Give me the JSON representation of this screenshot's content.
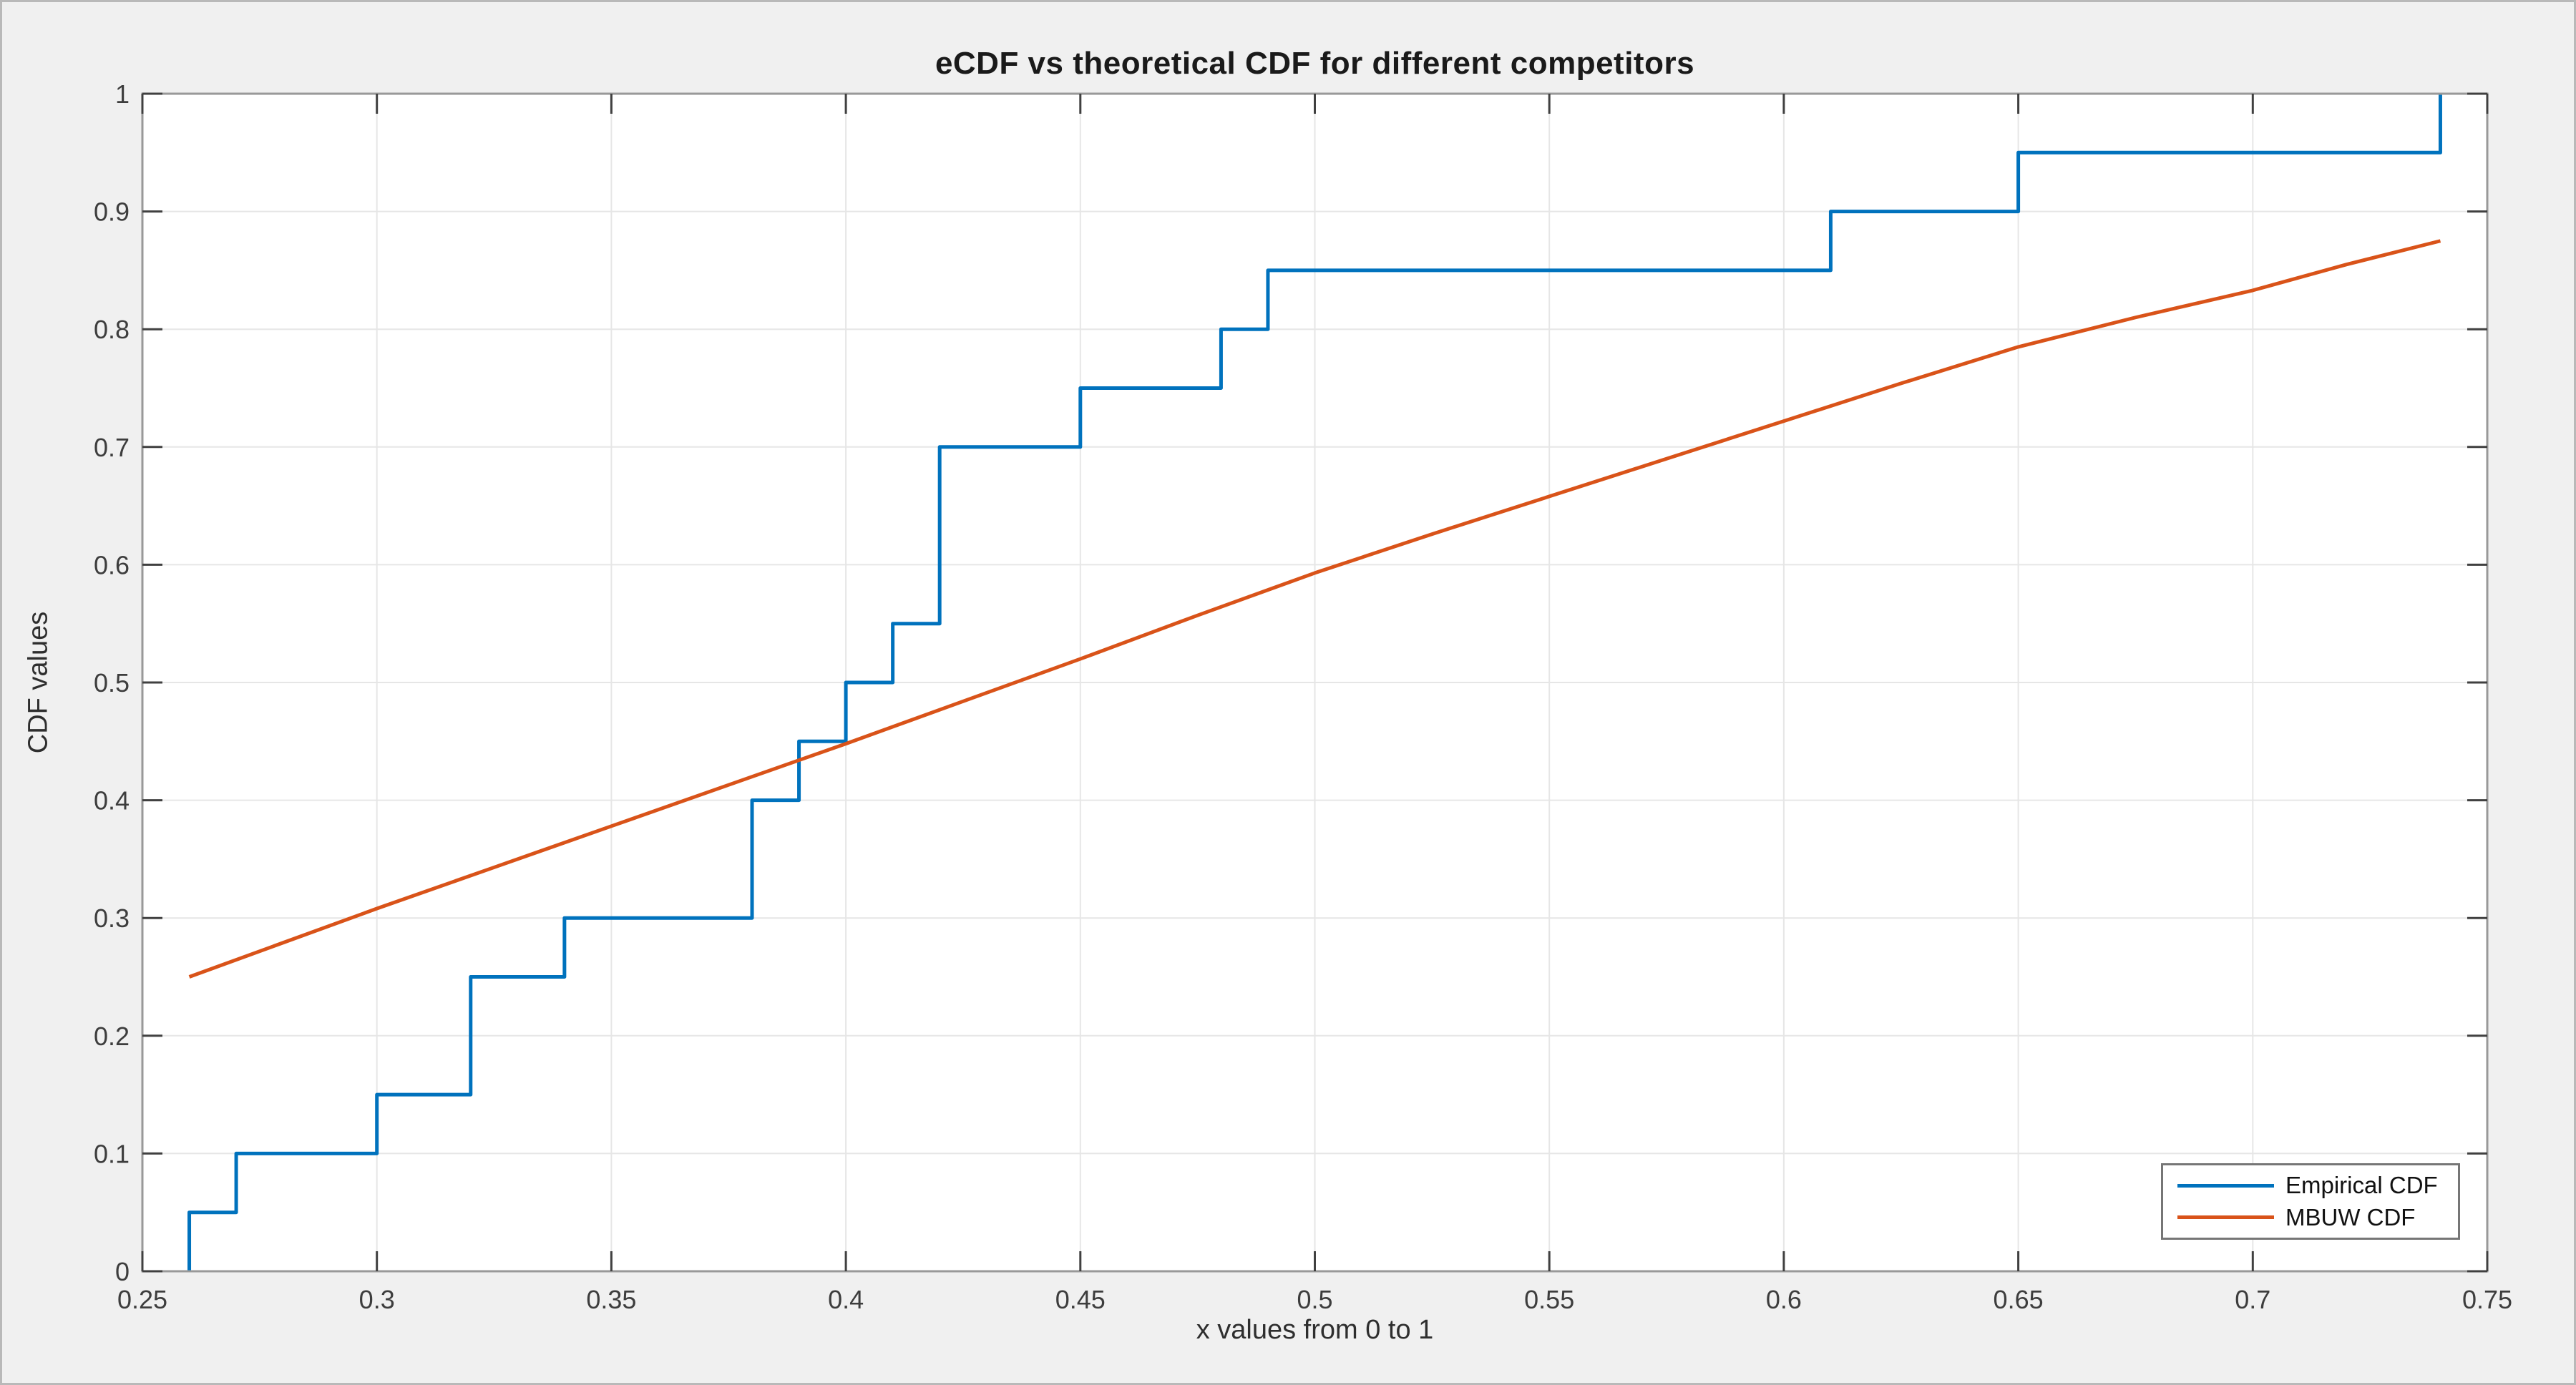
{
  "chart_data": {
    "type": "line",
    "title": "eCDF vs theoretical CDF for different competitors",
    "xlabel": "x values from 0 to 1",
    "ylabel": "CDF values",
    "xlim": [
      0.25,
      0.75
    ],
    "ylim": [
      0,
      1
    ],
    "xtick_labels": [
      "0.25",
      "0.3",
      "0.35",
      "0.4",
      "0.45",
      "0.5",
      "0.55",
      "0.6",
      "0.65",
      "0.7",
      "0.75"
    ],
    "ytick_labels": [
      "0",
      "0.1",
      "0.2",
      "0.3",
      "0.4",
      "0.5",
      "0.6",
      "0.7",
      "0.8",
      "0.9",
      "1"
    ],
    "grid": true,
    "legend_position": "bottom-right",
    "series": [
      {
        "name": "Empirical CDF",
        "style": "step",
        "color": "#0072BD",
        "start_y": 0,
        "jump_points": [
          [
            0.26,
            0.05
          ],
          [
            0.27,
            0.1
          ],
          [
            0.3,
            0.15
          ],
          [
            0.32,
            0.25
          ],
          [
            0.34,
            0.3
          ],
          [
            0.38,
            0.4
          ],
          [
            0.39,
            0.45
          ],
          [
            0.4,
            0.5
          ],
          [
            0.41,
            0.55
          ],
          [
            0.42,
            0.7
          ],
          [
            0.45,
            0.75
          ],
          [
            0.48,
            0.8
          ],
          [
            0.49,
            0.85
          ],
          [
            0.61,
            0.9
          ],
          [
            0.65,
            0.95
          ],
          [
            0.74,
            1.0
          ]
        ]
      },
      {
        "name": "MBUW CDF",
        "style": "line",
        "color": "#D95319",
        "x": [
          0.26,
          0.28,
          0.3,
          0.325,
          0.35,
          0.375,
          0.4,
          0.425,
          0.45,
          0.475,
          0.5,
          0.525,
          0.55,
          0.575,
          0.6,
          0.625,
          0.65,
          0.675,
          0.7,
          0.72,
          0.74
        ],
        "y": [
          0.25,
          0.279,
          0.308,
          0.343,
          0.378,
          0.413,
          0.448,
          0.484,
          0.52,
          0.557,
          0.593,
          0.626,
          0.658,
          0.69,
          0.722,
          0.754,
          0.785,
          0.81,
          0.833,
          0.855,
          0.875
        ]
      }
    ],
    "colors": {
      "figure_background": "#f0f0f0",
      "plot_background": "#ffffff",
      "axis_box": "#999999",
      "gridline": "#e6e6e6",
      "tick_mark": "#404040",
      "tick_label": "#3d3d3d",
      "title_text": "#1a1a1a"
    }
  }
}
